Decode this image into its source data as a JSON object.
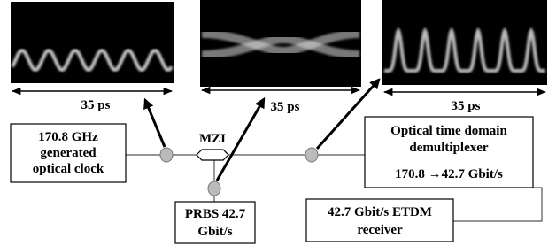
{
  "panels": [
    {
      "label": "35 ps"
    },
    {
      "label": "35 ps"
    },
    {
      "label": "35 ps"
    }
  ],
  "clock_box": {
    "lines": [
      "170.8 GHz",
      "generated",
      "optical clock"
    ]
  },
  "mzi": {
    "label": "MZI"
  },
  "prbs_box": {
    "lines": [
      "PRBS 42.7",
      "Gbit/s"
    ]
  },
  "demux_box": {
    "lines": [
      "Optical time domain",
      "demultiplexer",
      "170.8 →42.7 Gbit/s"
    ]
  },
  "receiver_box": {
    "lines": [
      "42.7 Gbit/s ETDM",
      "receiver"
    ]
  }
}
